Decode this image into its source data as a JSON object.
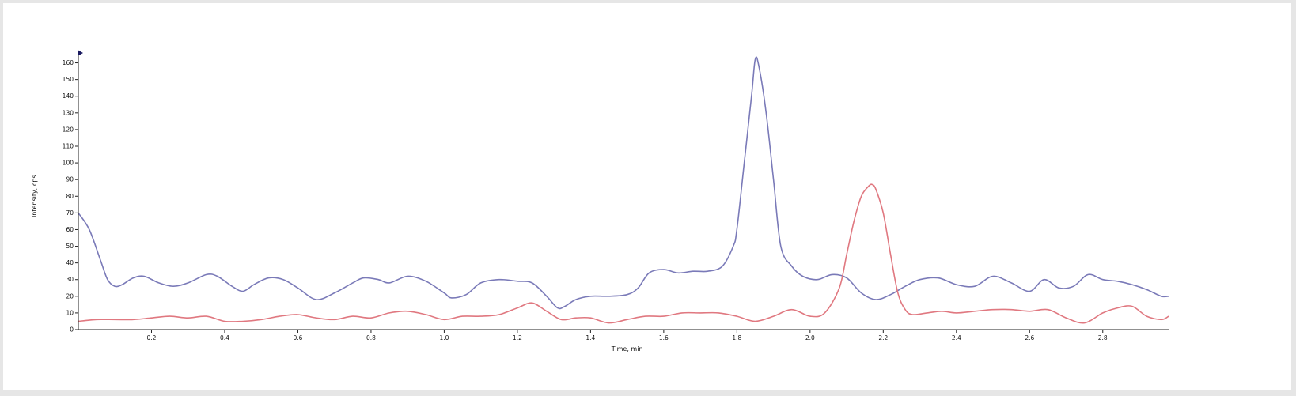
{
  "chart_data": {
    "type": "line",
    "title": "",
    "xlabel": "Time, min",
    "ylabel": "Intensity, cps",
    "xlim": [
      0.0,
      2.98
    ],
    "ylim": [
      0,
      165
    ],
    "x_ticks": [
      0.2,
      0.4,
      0.6,
      0.8,
      1.0,
      1.2,
      1.4,
      1.6,
      1.8,
      2.0,
      2.2,
      2.4,
      2.6,
      2.8
    ],
    "x_tick_labels": [
      "0.2",
      "0.4",
      "0.6",
      "0.8",
      "1.0",
      "1.2",
      "1.4",
      "1.6",
      "1.8",
      "2.0",
      "2.2",
      "2.4",
      "2.6",
      "2.8"
    ],
    "y_ticks": [
      0,
      10,
      20,
      30,
      40,
      50,
      60,
      70,
      80,
      90,
      100,
      110,
      120,
      130,
      140,
      150,
      160
    ],
    "y_tick_labels": [
      "0",
      "10",
      "20",
      "30",
      "40",
      "50",
      "60",
      "70",
      "80",
      "90",
      "100",
      "110",
      "120",
      "130",
      "140",
      "150",
      "160"
    ],
    "grid": false,
    "legend": "none",
    "series": [
      {
        "color": "#7a7ab8",
        "x": [
          0.0,
          0.03,
          0.06,
          0.08,
          0.1,
          0.12,
          0.15,
          0.18,
          0.22,
          0.26,
          0.3,
          0.35,
          0.38,
          0.42,
          0.45,
          0.48,
          0.52,
          0.56,
          0.6,
          0.65,
          0.7,
          0.75,
          0.78,
          0.82,
          0.85,
          0.9,
          0.95,
          1.0,
          1.02,
          1.06,
          1.1,
          1.15,
          1.2,
          1.24,
          1.28,
          1.31,
          1.33,
          1.36,
          1.4,
          1.45,
          1.5,
          1.53,
          1.56,
          1.6,
          1.64,
          1.68,
          1.72,
          1.76,
          1.79,
          1.8,
          1.82,
          1.84,
          1.85,
          1.86,
          1.88,
          1.9,
          1.92,
          1.95,
          1.98,
          2.02,
          2.06,
          2.1,
          2.14,
          2.18,
          2.22,
          2.26,
          2.3,
          2.35,
          2.4,
          2.45,
          2.5,
          2.55,
          2.6,
          2.64,
          2.68,
          2.72,
          2.76,
          2.8,
          2.84,
          2.88,
          2.92,
          2.96,
          2.98
        ],
        "y": [
          70,
          60,
          42,
          30,
          26,
          27,
          31,
          32,
          28,
          26,
          28,
          33,
          32,
          26,
          23,
          27,
          31,
          30,
          25,
          18,
          22,
          28,
          31,
          30,
          28,
          32,
          29,
          22,
          19,
          21,
          28,
          30,
          29,
          28,
          20,
          13,
          14,
          18,
          20,
          20,
          21,
          25,
          34,
          36,
          34,
          35,
          35,
          38,
          50,
          60,
          100,
          140,
          162,
          158,
          130,
          90,
          50,
          38,
          32,
          30,
          33,
          31,
          22,
          18,
          21,
          26,
          30,
          31,
          27,
          26,
          32,
          28,
          23,
          30,
          25,
          26,
          33,
          30,
          29,
          27,
          24,
          20,
          20
        ]
      },
      {
        "color": "#e07880",
        "x": [
          0.0,
          0.05,
          0.1,
          0.15,
          0.2,
          0.25,
          0.3,
          0.35,
          0.4,
          0.45,
          0.5,
          0.55,
          0.6,
          0.65,
          0.7,
          0.75,
          0.8,
          0.85,
          0.9,
          0.95,
          1.0,
          1.05,
          1.1,
          1.15,
          1.2,
          1.24,
          1.28,
          1.32,
          1.36,
          1.4,
          1.45,
          1.5,
          1.55,
          1.6,
          1.65,
          1.7,
          1.75,
          1.8,
          1.85,
          1.9,
          1.95,
          2.0,
          2.04,
          2.08,
          2.1,
          2.12,
          2.14,
          2.16,
          2.17,
          2.18,
          2.2,
          2.22,
          2.24,
          2.26,
          2.28,
          2.32,
          2.36,
          2.4,
          2.45,
          2.5,
          2.55,
          2.6,
          2.65,
          2.7,
          2.75,
          2.8,
          2.84,
          2.88,
          2.92,
          2.96,
          2.98
        ],
        "y": [
          5,
          6,
          6,
          6,
          7,
          8,
          7,
          8,
          5,
          5,
          6,
          8,
          9,
          7,
          6,
          8,
          7,
          10,
          11,
          9,
          6,
          8,
          8,
          9,
          13,
          16,
          11,
          6,
          7,
          7,
          4,
          6,
          8,
          8,
          10,
          10,
          10,
          8,
          5,
          8,
          12,
          8,
          10,
          25,
          45,
          65,
          80,
          86,
          87,
          84,
          70,
          45,
          22,
          12,
          9,
          10,
          11,
          10,
          11,
          12,
          12,
          11,
          12,
          7,
          4,
          10,
          13,
          14,
          8,
          6,
          8
        ]
      }
    ]
  }
}
